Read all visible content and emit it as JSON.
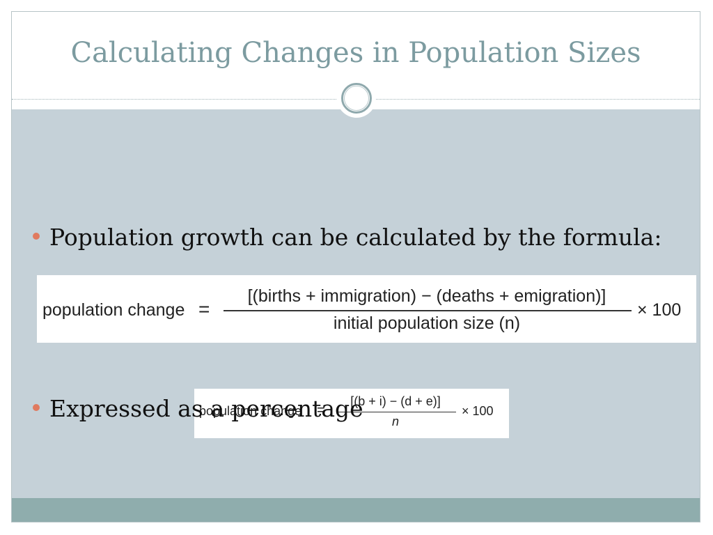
{
  "slide": {
    "title": "Calculating Changes in Population Sizes",
    "bullets": [
      "Population growth can be calculated by the formula:",
      "Expressed as a percentage"
    ],
    "formula_full": {
      "lhs": "population change",
      "eq": "=",
      "numerator": "[(births + immigration) − (deaths + emigration)]",
      "denominator": "initial population size (n)",
      "multiplier": "× 100"
    },
    "formula_short": {
      "lhs": "population change",
      "eq": "=",
      "numerator": "[(b + i) − (d + e)]",
      "denominator": "n",
      "multiplier": "× 100"
    }
  },
  "colors": {
    "title": "#7c9ba0",
    "content_background": "#c5d1d8",
    "bullet": "#e07a5f",
    "footer": "#8fadad"
  }
}
